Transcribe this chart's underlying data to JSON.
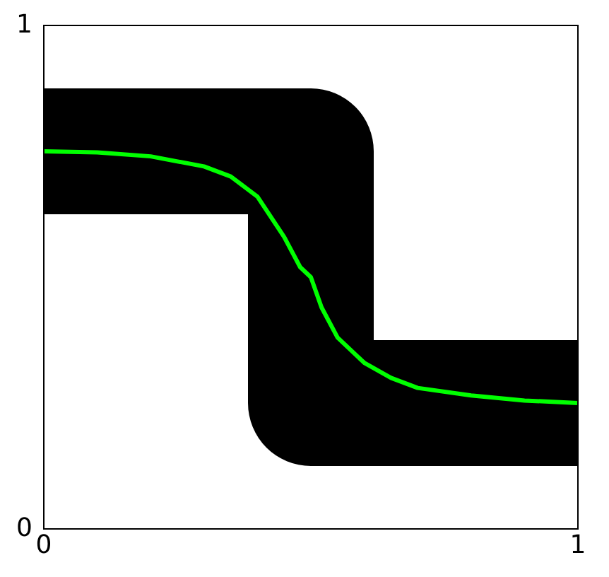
{
  "chart_data": {
    "type": "line",
    "xlim": [
      0,
      1
    ],
    "ylim": [
      0,
      1
    ],
    "xticks": [
      0,
      1
    ],
    "yticks": [
      0,
      1
    ],
    "marker": "none",
    "line_style": "solid",
    "series": [
      {
        "color": "#000000",
        "x": [
          0,
          0.5,
          0.5,
          1
        ],
        "values": [
          0.75,
          0.75,
          0.25,
          0.25
        ]
      },
      {
        "color": "#00ff00",
        "x": [
          0,
          0.1,
          0.2,
          0.3,
          0.35,
          0.4,
          0.45,
          0.48,
          0.5,
          0.52,
          0.55,
          0.6,
          0.65,
          0.7,
          0.8,
          0.9,
          1
        ],
        "values": [
          0.75,
          0.748,
          0.74,
          0.72,
          0.7,
          0.66,
          0.58,
          0.52,
          0.5,
          0.44,
          0.38,
          0.33,
          0.3,
          0.28,
          0.265,
          0.255,
          0.25
        ]
      }
    ]
  }
}
